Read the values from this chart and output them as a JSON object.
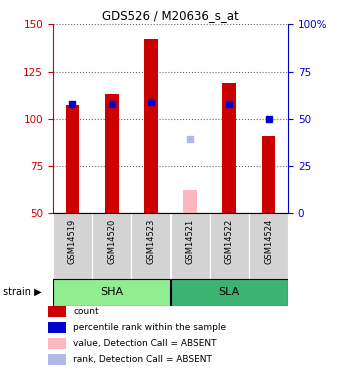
{
  "title": "GDS526 / M20636_s_at",
  "samples": [
    "GSM14519",
    "GSM14520",
    "GSM14523",
    "GSM14521",
    "GSM14522",
    "GSM14524"
  ],
  "groups": [
    "SHA",
    "SHA",
    "SHA",
    "SLA",
    "SLA",
    "SLA"
  ],
  "bar_heights": [
    107,
    113,
    142,
    62,
    119,
    91
  ],
  "bar_colors": [
    "#cc0000",
    "#cc0000",
    "#cc0000",
    "#ffb6c1",
    "#cc0000",
    "#cc0000"
  ],
  "rank_values": [
    108,
    108,
    109,
    89,
    108,
    100
  ],
  "rank_colors": [
    "#0000cd",
    "#0000cd",
    "#0000cd",
    "#b0b8e8",
    "#0000cd",
    "#0000cd"
  ],
  "ylim_left": [
    50,
    150
  ],
  "ylim_right": [
    0,
    100
  ],
  "yticks_left": [
    50,
    75,
    100,
    125,
    150
  ],
  "yticks_right": [
    0,
    25,
    50,
    75,
    100
  ],
  "ylabel_left_color": "#cc0000",
  "ylabel_right_color": "#0000cd",
  "bar_width": 0.35,
  "rank_marker_size": 5,
  "bg_sample_row": "#d3d3d3",
  "bg_group_sha": "#90EE90",
  "bg_group_sla": "#3CB371",
  "legend_items": [
    {
      "color": "#cc0000",
      "label": "count"
    },
    {
      "color": "#0000cd",
      "label": "percentile rank within the sample"
    },
    {
      "color": "#ffb6c1",
      "label": "value, Detection Call = ABSENT"
    },
    {
      "color": "#b0b8e8",
      "label": "rank, Detection Call = ABSENT"
    }
  ]
}
